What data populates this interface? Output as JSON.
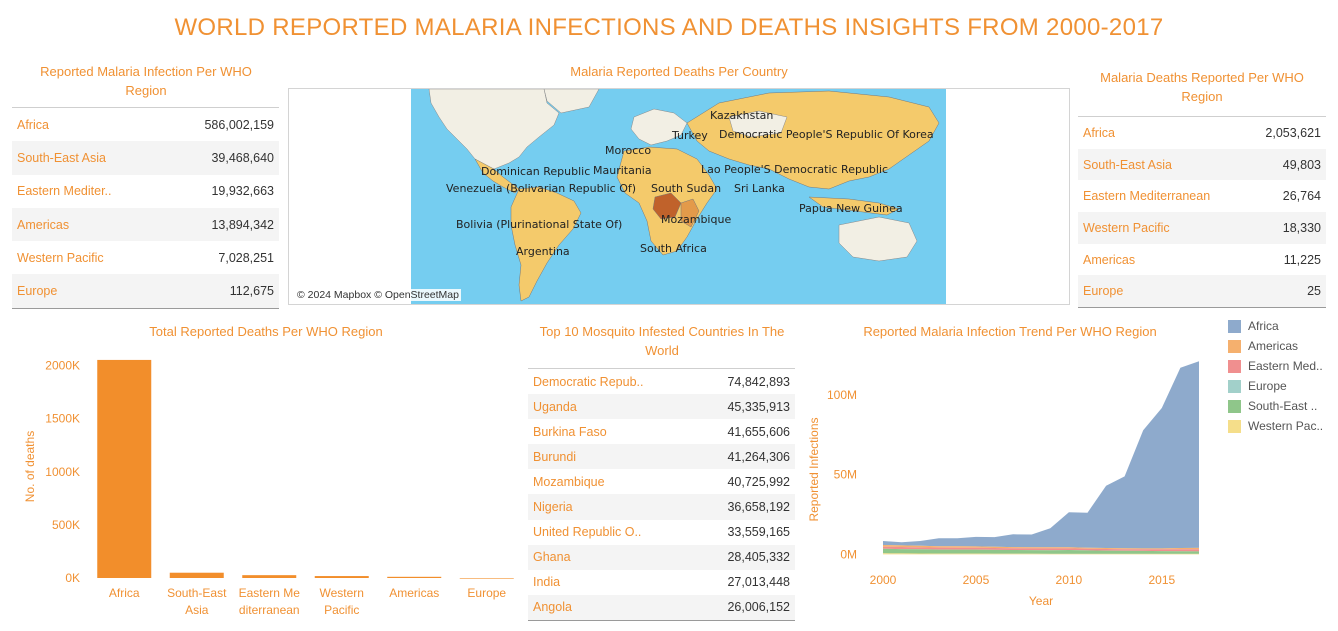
{
  "title": "WORLD REPORTED MALARIA INFECTIONS AND DEATHS INSIGHTS FROM 2000-2017",
  "infection_table": {
    "title_line1": "Reported Malaria Infection Per WHO",
    "title_line2": "Region",
    "rows": [
      {
        "label": "Africa",
        "value": "586,002,159"
      },
      {
        "label": "South-East Asia",
        "value": "39,468,640"
      },
      {
        "label": "Eastern Mediter..",
        "value": "19,932,663"
      },
      {
        "label": "Americas",
        "value": "13,894,342"
      },
      {
        "label": "Western Pacific",
        "value": "7,028,251"
      },
      {
        "label": "Europe",
        "value": "112,675"
      }
    ]
  },
  "map": {
    "title": "Malaria Reported Deaths Per Country",
    "attribution": "© 2024 Mapbox © OpenStreetMap",
    "labels": [
      "Kazakhstan",
      "Turkey",
      "Democratic People'S Republic Of Korea",
      "Morocco",
      "Dominican Republic",
      "Mauritania",
      "Lao People'S Democratic Republic",
      "Venezuela (Bolivarian Republic Of)",
      "South Sudan",
      "Sri Lanka",
      "Papua New Guinea",
      "Bolivia (Plurinational State Of)",
      "Mozambique",
      "Argentina",
      "South Africa"
    ],
    "colors": {
      "ocean": "#75cdf0",
      "land": "#f4ca6b",
      "high": "#c0622b",
      "mid": "#e39a4a",
      "nodata": "#f2efe4"
    }
  },
  "deaths_table": {
    "title_line1": "Malaria Deaths Reported Per WHO",
    "title_line2": "Region",
    "rows": [
      {
        "label": "Africa",
        "value": "2,053,621"
      },
      {
        "label": "South-East Asia",
        "value": "49,803"
      },
      {
        "label": "Eastern Mediterranean",
        "value": "26,764"
      },
      {
        "label": "Western Pacific",
        "value": "18,330"
      },
      {
        "label": "Americas",
        "value": "11,225"
      },
      {
        "label": "Europe",
        "value": "25"
      }
    ]
  },
  "bar_panel": {
    "title": "Total Reported Deaths Per WHO Region"
  },
  "top10_table": {
    "title_line1": "Top 10 Mosquito Infested Countries In The",
    "title_line2": "World",
    "rows": [
      {
        "label": "Democratic Repub..",
        "value": "74,842,893"
      },
      {
        "label": "Uganda",
        "value": "45,335,913"
      },
      {
        "label": "Burkina Faso",
        "value": "41,655,606"
      },
      {
        "label": "Burundi",
        "value": "41,264,306"
      },
      {
        "label": "Mozambique",
        "value": "40,725,992"
      },
      {
        "label": "Nigeria",
        "value": "36,658,192"
      },
      {
        "label": "United Republic O..",
        "value": "33,559,165"
      },
      {
        "label": "Ghana",
        "value": "28,405,332"
      },
      {
        "label": "India",
        "value": "27,013,448"
      },
      {
        "label": "Angola",
        "value": "26,006,152"
      }
    ]
  },
  "area_panel": {
    "title": "Reported Malaria Infection Trend Per WHO Region"
  },
  "chart_data": [
    {
      "type": "bar",
      "title": "Total Reported Deaths Per WHO Region",
      "categories": [
        [
          "Africa"
        ],
        [
          "South-East",
          "Asia"
        ],
        [
          "Eastern Me",
          "diterranean"
        ],
        [
          "Western",
          "Pacific"
        ],
        [
          "Americas"
        ],
        [
          "Europe"
        ]
      ],
      "values": [
        2053621,
        49803,
        26764,
        18330,
        11225,
        25
      ],
      "ylabel": "No. of deaths",
      "xlabel": "",
      "ylim": [
        0,
        2100000
      ],
      "yticks": [
        0,
        500000,
        1000000,
        1500000,
        2000000
      ],
      "ytick_labels": [
        "0K",
        "500K",
        "1000K",
        "1500K",
        "2000K"
      ],
      "color": "#f28e2b"
    },
    {
      "type": "area",
      "title": "Reported Malaria Infection Trend Per WHO Region",
      "x": [
        2000,
        2001,
        2002,
        2003,
        2004,
        2005,
        2006,
        2007,
        2008,
        2009,
        2010,
        2011,
        2012,
        2013,
        2014,
        2015,
        2016,
        2017
      ],
      "xticks": [
        2000,
        2005,
        2010,
        2015
      ],
      "xlabel": "Year",
      "ylabel": "Reported Infections",
      "ylim": [
        -6000000,
        125000000
      ],
      "yticks": [
        0,
        50000000,
        100000000
      ],
      "ytick_labels": [
        "0M",
        "50M",
        "100M"
      ],
      "stacked": true,
      "series": [
        {
          "name": "Africa",
          "color": "#8eaacc",
          "values": [
            2500000,
            2000000,
            3000000,
            5000000,
            5000000,
            6000000,
            6000000,
            8000000,
            8000000,
            12000000,
            22000000,
            22000000,
            39000000,
            45000000,
            74000000,
            88000000,
            113000000,
            117000000
          ]
        },
        {
          "name": "Americas",
          "color": "#f5b06e",
          "values": [
            1100000,
            1000000,
            1000000,
            900000,
            900000,
            800000,
            800000,
            700000,
            700000,
            700000,
            700000,
            600000,
            600000,
            600000,
            600000,
            600000,
            800000,
            900000
          ]
        },
        {
          "name": "Eastern Med..",
          "color": "#f08f8f",
          "values": [
            1300000,
            1300000,
            1200000,
            1200000,
            1200000,
            1200000,
            1200000,
            1100000,
            1100000,
            1100000,
            1000000,
            1000000,
            1000000,
            1000000,
            1000000,
            1100000,
            1200000,
            1300000
          ]
        },
        {
          "name": "Europe",
          "color": "#a2d0ca",
          "values": [
            20000,
            15000,
            12000,
            10000,
            8000,
            7000,
            6000,
            5000,
            4000,
            3000,
            3000,
            2000,
            2000,
            2000,
            2000,
            1000,
            1000,
            1000
          ]
        },
        {
          "name": "South-East ..",
          "color": "#8fc68a",
          "values": [
            2800000,
            2700000,
            2600000,
            2500000,
            2500000,
            2500000,
            2400000,
            2400000,
            2300000,
            2300000,
            2400000,
            2200000,
            2100000,
            2000000,
            1900000,
            1800000,
            1700000,
            1600000
          ]
        },
        {
          "name": "Western Pac..",
          "color": "#f5de8a",
          "values": [
            700000,
            650000,
            600000,
            550000,
            500000,
            500000,
            450000,
            400000,
            400000,
            350000,
            350000,
            350000,
            300000,
            300000,
            300000,
            300000,
            300000,
            300000
          ]
        }
      ],
      "legend": "right"
    }
  ]
}
